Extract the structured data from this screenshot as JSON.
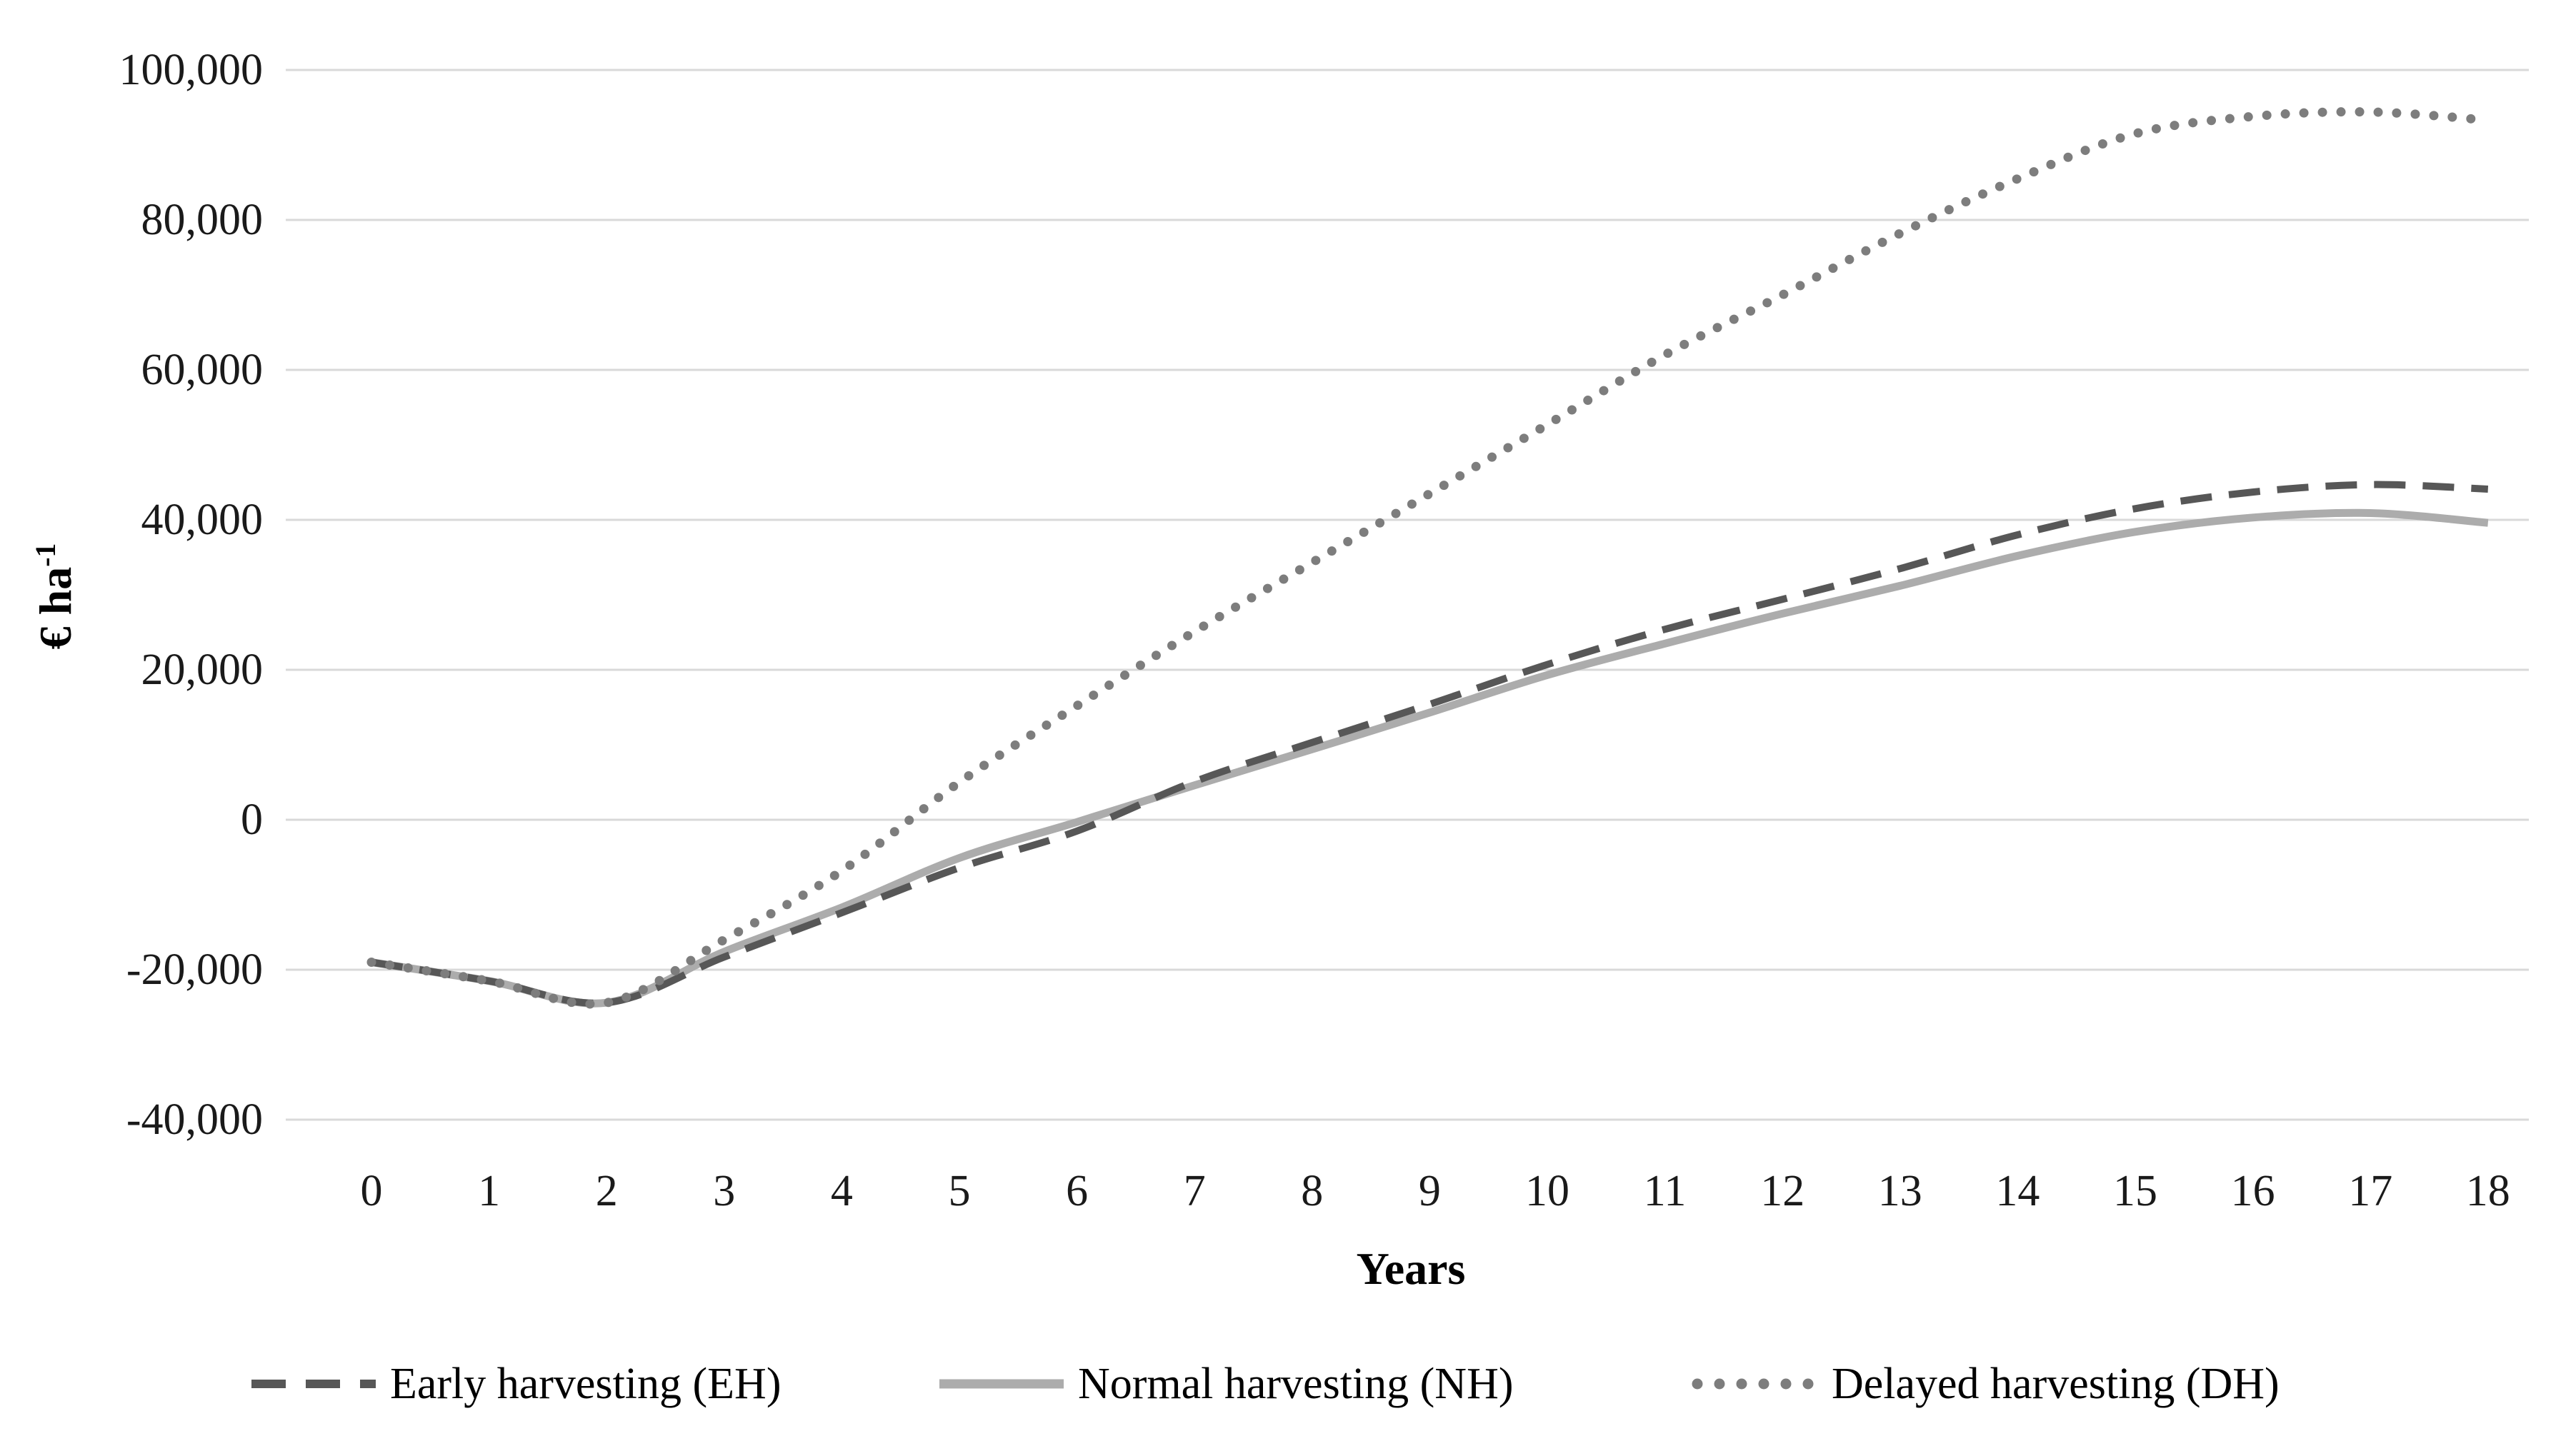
{
  "figure": {
    "background": "#ffffff",
    "text_color": "#1a1a1a",
    "gridline_color": "#d9d9d9"
  },
  "chart_data": {
    "type": "line",
    "title": "",
    "xlabel": "Years",
    "ylabel": "€ ha",
    "ylabel_exponent": "-1",
    "x": [
      0,
      1,
      2,
      3,
      4,
      5,
      6,
      7,
      8,
      9,
      10,
      11,
      12,
      13,
      14,
      15,
      16,
      17,
      18
    ],
    "x_tick_labels": [
      "0",
      "1",
      "2",
      "3",
      "4",
      "5",
      "6",
      "7",
      "8",
      "9",
      "10",
      "11",
      "12",
      "13",
      "14",
      "15",
      "16",
      "17",
      "18"
    ],
    "ylim": [
      -40000,
      100000
    ],
    "y_ticks": [
      {
        "value": 100000,
        "label": "100,000"
      },
      {
        "value": 80000,
        "label": "80,000"
      },
      {
        "value": 60000,
        "label": "60,000"
      },
      {
        "value": 40000,
        "label": "40,000"
      },
      {
        "value": 20000,
        "label": "20,000"
      },
      {
        "value": 0,
        "label": "0"
      },
      {
        "value": -20000,
        "label": "-20,000"
      },
      {
        "value": -40000,
        "label": "-40,000"
      }
    ],
    "grid": "horizontal",
    "legend_position": "bottom",
    "series": [
      {
        "name": "Early harvesting (EH)",
        "style": "dashed",
        "color": "#575757",
        "values": [
          -19000,
          -21500,
          -24400,
          -18300,
          -12400,
          -6400,
          -1500,
          5100,
          10300,
          15400,
          20700,
          25400,
          29400,
          33500,
          38000,
          41500,
          43700,
          44700,
          44100
        ]
      },
      {
        "name": "Normal harvesting (NH)",
        "style": "solid",
        "color": "#acacac",
        "values": [
          -19000,
          -21500,
          -24400,
          -17600,
          -11700,
          -5100,
          -300,
          4600,
          9400,
          14300,
          19300,
          23500,
          27500,
          31200,
          35200,
          38400,
          40300,
          40900,
          39600
        ]
      },
      {
        "name": "Delayed harvesting (DH)",
        "style": "dotted",
        "color": "#7d7d7d",
        "values": [
          -19000,
          -21500,
          -24400,
          -16000,
          -6800,
          5000,
          15200,
          25100,
          34300,
          43500,
          52700,
          62000,
          70000,
          78200,
          85500,
          91500,
          93800,
          94400,
          93300
        ]
      }
    ]
  }
}
